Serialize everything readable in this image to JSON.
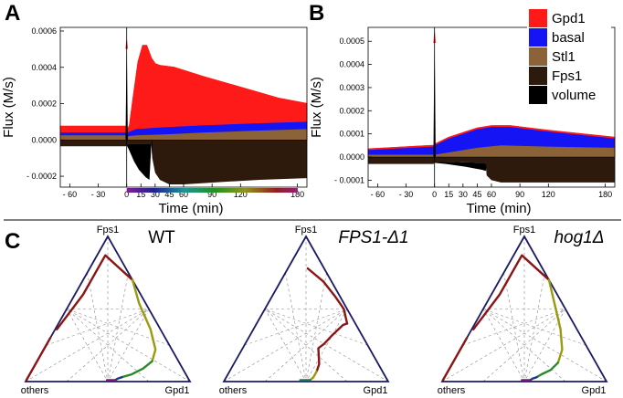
{
  "colors": {
    "Gpd1": "#ff1a1a",
    "basal": "#1414f5",
    "Stl1": "#8c6239",
    "Fps1": "#2d1a0c",
    "volume": "#000000",
    "triangle": "#1a1a66",
    "grid": "#888888"
  },
  "panels": {
    "A": {
      "letter": "A"
    },
    "B": {
      "letter": "B"
    },
    "C": {
      "letter": "C"
    }
  },
  "legend": [
    "Gpd1",
    "basal",
    "Stl1",
    "Fps1",
    "volume"
  ],
  "chart_data": [
    {
      "panel": "A",
      "type": "area",
      "xlabel": "Time (min)",
      "ylabel": "Flux (M/s)",
      "xlim": [
        -70,
        190
      ],
      "ylim": [
        -0.00026,
        0.00062
      ],
      "xticks": [
        -60,
        -30,
        0,
        15,
        30,
        45,
        60,
        90,
        120,
        180
      ],
      "xtick_labels": [
        "- 60",
        "- 30",
        "0",
        "15",
        "30",
        "45",
        "60",
        "90",
        "120",
        "180"
      ],
      "yticks": [
        -0.0002,
        0,
        0.0002,
        0.0004,
        0.0006
      ],
      "ytick_labels": [
        "- 0.0002",
        "0.0000",
        "0.0002",
        "0.0004",
        "0.0006"
      ],
      "color_time_bar": true,
      "series": [
        {
          "name": "Stl1",
          "points": [
            [
              -70,
              2.5e-05
            ],
            [
              -1,
              2.5e-05
            ],
            [
              0,
              1.5e-05
            ],
            [
              1,
              2e-05
            ],
            [
              10,
              2.5e-05
            ],
            [
              40,
              3e-05
            ],
            [
              80,
              4e-05
            ],
            [
              130,
              5e-05
            ],
            [
              190,
              6e-05
            ]
          ]
        },
        {
          "name": "basal",
          "points": [
            [
              -70,
              4e-05
            ],
            [
              -1,
              4e-05
            ],
            [
              0,
              3e-05
            ],
            [
              1,
              4e-05
            ],
            [
              10,
              6e-05
            ],
            [
              40,
              7e-05
            ],
            [
              80,
              8e-05
            ],
            [
              130,
              9e-05
            ],
            [
              190,
              0.0001
            ]
          ]
        },
        {
          "name": "Gpd1",
          "points": [
            [
              -70,
              7.5e-05
            ],
            [
              -1,
              7.5e-05
            ],
            [
              0,
              5e-05
            ],
            [
              3,
              8e-05
            ],
            [
              7,
              0.00024
            ],
            [
              12,
              0.00043
            ],
            [
              17,
              0.00052
            ],
            [
              21,
              0.00052
            ],
            [
              26,
              0.00045
            ],
            [
              30,
              0.00042
            ],
            [
              35,
              0.00041
            ],
            [
              50,
              0.0004
            ],
            [
              80,
              0.00035
            ],
            [
              120,
              0.00029
            ],
            [
              160,
              0.00023
            ],
            [
              190,
              0.0002
            ]
          ]
        },
        {
          "name": "Fps1",
          "points": [
            [
              -70,
              -3.5e-05
            ],
            [
              -1,
              -3.5e-05
            ],
            [
              0,
              -3e-05
            ],
            [
              2,
              -2e-05
            ],
            [
              10,
              -2e-05
            ],
            [
              26,
              -2e-05
            ],
            [
              27,
              -0.0001
            ],
            [
              30,
              -0.00018
            ],
            [
              35,
              -0.00022
            ],
            [
              45,
              -0.000245
            ],
            [
              60,
              -0.000245
            ],
            [
              100,
              -0.000232
            ],
            [
              140,
              -0.00022
            ],
            [
              190,
              -0.00021
            ]
          ]
        },
        {
          "name": "volume",
          "points": [
            [
              0,
              -3e-05
            ],
            [
              2,
              -5e-05
            ],
            [
              8,
              -0.00012
            ],
            [
              13,
              -0.000165
            ],
            [
              20,
              -0.000205
            ],
            [
              24,
              -0.00022
            ],
            [
              26,
              -2e-05
            ],
            [
              27,
              0
            ]
          ]
        }
      ],
      "spike": {
        "x": 0,
        "ymax": 0.00057,
        "ymin": -3e-05
      }
    },
    {
      "panel": "B",
      "type": "area",
      "xlabel": "Time (min)",
      "ylabel": "Flux (M/s)",
      "xlim": [
        -70,
        190
      ],
      "ylim": [
        -0.00013,
        0.00056
      ],
      "xticks": [
        -60,
        -30,
        0,
        15,
        30,
        45,
        60,
        90,
        120,
        180
      ],
      "xtick_labels": [
        "- 60",
        "- 30",
        "0",
        "15",
        "30",
        "45",
        "60",
        "90",
        "120",
        "180"
      ],
      "yticks": [
        -0.0001,
        0,
        0.0001,
        0.0002,
        0.0003,
        0.0004,
        0.0005
      ],
      "ytick_labels": [
        "- 0.0001",
        "0.0000",
        "0.0001",
        "0.0002",
        "0.0003",
        "0.0004",
        "0.0005"
      ],
      "color_time_bar": false,
      "series": [
        {
          "name": "Stl1",
          "points": [
            [
              -70,
              1e-05
            ],
            [
              -1,
              1e-05
            ],
            [
              0,
              1e-05
            ],
            [
              15,
              2e-05
            ],
            [
              45,
              4e-05
            ],
            [
              70,
              5e-05
            ],
            [
              120,
              4.5e-05
            ],
            [
              190,
              4e-05
            ]
          ]
        },
        {
          "name": "basal",
          "points": [
            [
              -70,
              3e-05
            ],
            [
              -1,
              4.5e-05
            ],
            [
              0,
              5e-05
            ],
            [
              15,
              8e-05
            ],
            [
              30,
              0.0001
            ],
            [
              45,
              0.00012
            ],
            [
              60,
              0.00013
            ],
            [
              80,
              0.00013
            ],
            [
              120,
              0.00011
            ],
            [
              190,
              8e-05
            ]
          ]
        },
        {
          "name": "Gpd1",
          "points": [
            [
              -70,
              3.5e-05
            ],
            [
              -1,
              5e-05
            ],
            [
              0,
              5.5e-05
            ],
            [
              15,
              8.5e-05
            ],
            [
              30,
              0.000105
            ],
            [
              45,
              0.000125
            ],
            [
              60,
              0.000135
            ],
            [
              80,
              0.000135
            ],
            [
              120,
              0.000115
            ],
            [
              190,
              8.5e-05
            ]
          ]
        },
        {
          "name": "Fps1",
          "points": [
            [
              -70,
              -3e-05
            ],
            [
              -1,
              -3e-05
            ],
            [
              0,
              -2e-05
            ],
            [
              12,
              -2e-05
            ],
            [
              50,
              -2.5e-05
            ],
            [
              54,
              -2.5e-05
            ],
            [
              55,
              -8e-05
            ],
            [
              60,
              -0.0001
            ],
            [
              70,
              -0.00011
            ],
            [
              190,
              -0.00011
            ]
          ]
        },
        {
          "name": "volume",
          "points": [
            [
              0,
              -2.5e-05
            ],
            [
              12,
              -3e-05
            ],
            [
              30,
              -4e-05
            ],
            [
              50,
              -5.5e-05
            ],
            [
              54,
              -6e-05
            ],
            [
              55,
              -2.5e-05
            ]
          ]
        }
      ],
      "spike": {
        "x": 0,
        "ymax": 0.00056,
        "ymin": -3e-05
      }
    },
    {
      "panel": "C",
      "type": "ternary",
      "subplots": [
        {
          "title": "WT",
          "title_style": "normal",
          "vertex_labels": {
            "top": "Fps1",
            "left": "others",
            "right": "Gpd1"
          },
          "trajectories": [
            {
              "color": "#8b1414",
              "points": [
                [
                  0.63,
                  0.01,
                  0.36
                ],
                [
                  0.35,
                  0.05,
                  0.6
                ],
                [
                  0.08,
                  0.05,
                  0.87
                ],
                [
                  0.0,
                  0.3,
                  0.7
                ]
              ]
            },
            {
              "color": "#8b1414",
              "points": [
                [
                  0.7,
                  0.0,
                  0.3
                ],
                [
                  0.85,
                  0.0,
                  0.15
                ],
                [
                  0.99,
                  0.0,
                  0.01
                ]
              ]
            },
            {
              "color": "#9a9a10",
              "points": [
                [
                  0.0,
                  0.3,
                  0.7
                ],
                [
                  0.04,
                  0.42,
                  0.54
                ],
                [
                  0.06,
                  0.58,
                  0.36
                ],
                [
                  0.1,
                  0.68,
                  0.22
                ],
                [
                  0.16,
                  0.7,
                  0.14
                ]
              ]
            },
            {
              "color": "#2a8a2a",
              "points": [
                [
                  0.16,
                  0.7,
                  0.14
                ],
                [
                  0.24,
                  0.67,
                  0.09
                ],
                [
                  0.33,
                  0.62,
                  0.05
                ],
                [
                  0.4,
                  0.57,
                  0.03
                ]
              ]
            },
            {
              "color": "#1a3a8a",
              "points": [
                [
                  0.4,
                  0.57,
                  0.03
                ],
                [
                  0.43,
                  0.55,
                  0.02
                ],
                [
                  0.45,
                  0.54,
                  0.01
                ]
              ]
            },
            {
              "color": "#7a1a7a",
              "points": [
                [
                  0.45,
                  0.54,
                  0.01
                ],
                [
                  0.47,
                  0.52,
                  0.01
                ],
                [
                  0.5,
                  0.49,
                  0.01
                ]
              ]
            }
          ]
        },
        {
          "title": "FPS1-Δ1",
          "title_style": "italic",
          "vertex_labels": {
            "top": "Fps1",
            "left": "others",
            "right": "Gpd1"
          },
          "trajectories": [
            {
              "color": "#8b1414",
              "points": [
                [
                  0.4,
                  0.53,
                  0.07
                ],
                [
                  0.36,
                  0.52,
                  0.12
                ],
                [
                  0.31,
                  0.46,
                  0.23
                ],
                [
                  0.26,
                  0.48,
                  0.26
                ],
                [
                  0.18,
                  0.5,
                  0.32
                ],
                [
                  0.08,
                  0.53,
                  0.39
                ],
                [
                  0.05,
                  0.55,
                  0.4
                ]
              ]
            },
            {
              "color": "#8b1414",
              "points": [
                [
                  0.05,
                  0.55,
                  0.4
                ],
                [
                  0.02,
                  0.48,
                  0.5
                ],
                [
                  0.03,
                  0.38,
                  0.59
                ],
                [
                  0.05,
                  0.26,
                  0.69
                ],
                [
                  0.1,
                  0.12,
                  0.78
                ]
              ]
            },
            {
              "color": "#9a9a10",
              "points": [
                [
                  0.4,
                  0.53,
                  0.07
                ],
                [
                  0.44,
                  0.53,
                  0.03
                ],
                [
                  0.47,
                  0.52,
                  0.01
                ]
              ]
            },
            {
              "color": "#1a7a5a",
              "points": [
                [
                  0.47,
                  0.52,
                  0.01
                ],
                [
                  0.5,
                  0.49,
                  0.01
                ],
                [
                  0.53,
                  0.46,
                  0.01
                ]
              ]
            }
          ]
        },
        {
          "title": "hog1Δ",
          "title_style": "italic",
          "vertex_labels": {
            "top": "Fps1",
            "left": "others",
            "right": "Gpd1"
          },
          "trajectories": [
            {
              "color": "#8b1414",
              "points": [
                [
                  0.63,
                  0.01,
                  0.36
                ],
                [
                  0.35,
                  0.05,
                  0.6
                ],
                [
                  0.08,
                  0.05,
                  0.87
                ],
                [
                  0.0,
                  0.3,
                  0.7
                ]
              ]
            },
            {
              "color": "#8b1414",
              "points": [
                [
                  0.7,
                  0.0,
                  0.3
                ],
                [
                  0.85,
                  0.0,
                  0.15
                ],
                [
                  0.99,
                  0.0,
                  0.01
                ]
              ]
            },
            {
              "color": "#9a9a10",
              "points": [
                [
                  0.0,
                  0.3,
                  0.7
                ],
                [
                  0.05,
                  0.42,
                  0.53
                ],
                [
                  0.1,
                  0.54,
                  0.36
                ],
                [
                  0.16,
                  0.62,
                  0.22
                ],
                [
                  0.23,
                  0.64,
                  0.13
                ]
              ]
            },
            {
              "color": "#2a8a2a",
              "points": [
                [
                  0.23,
                  0.64,
                  0.13
                ],
                [
                  0.3,
                  0.62,
                  0.08
                ],
                [
                  0.37,
                  0.58,
                  0.05
                ],
                [
                  0.41,
                  0.56,
                  0.03
                ]
              ]
            },
            {
              "color": "#1a3a8a",
              "points": [
                [
                  0.41,
                  0.56,
                  0.03
                ],
                [
                  0.44,
                  0.54,
                  0.02
                ],
                [
                  0.46,
                  0.53,
                  0.01
                ]
              ]
            },
            {
              "color": "#7a1a7a",
              "points": [
                [
                  0.46,
                  0.53,
                  0.01
                ],
                [
                  0.48,
                  0.51,
                  0.01
                ],
                [
                  0.51,
                  0.48,
                  0.01
                ]
              ]
            }
          ]
        }
      ]
    }
  ]
}
